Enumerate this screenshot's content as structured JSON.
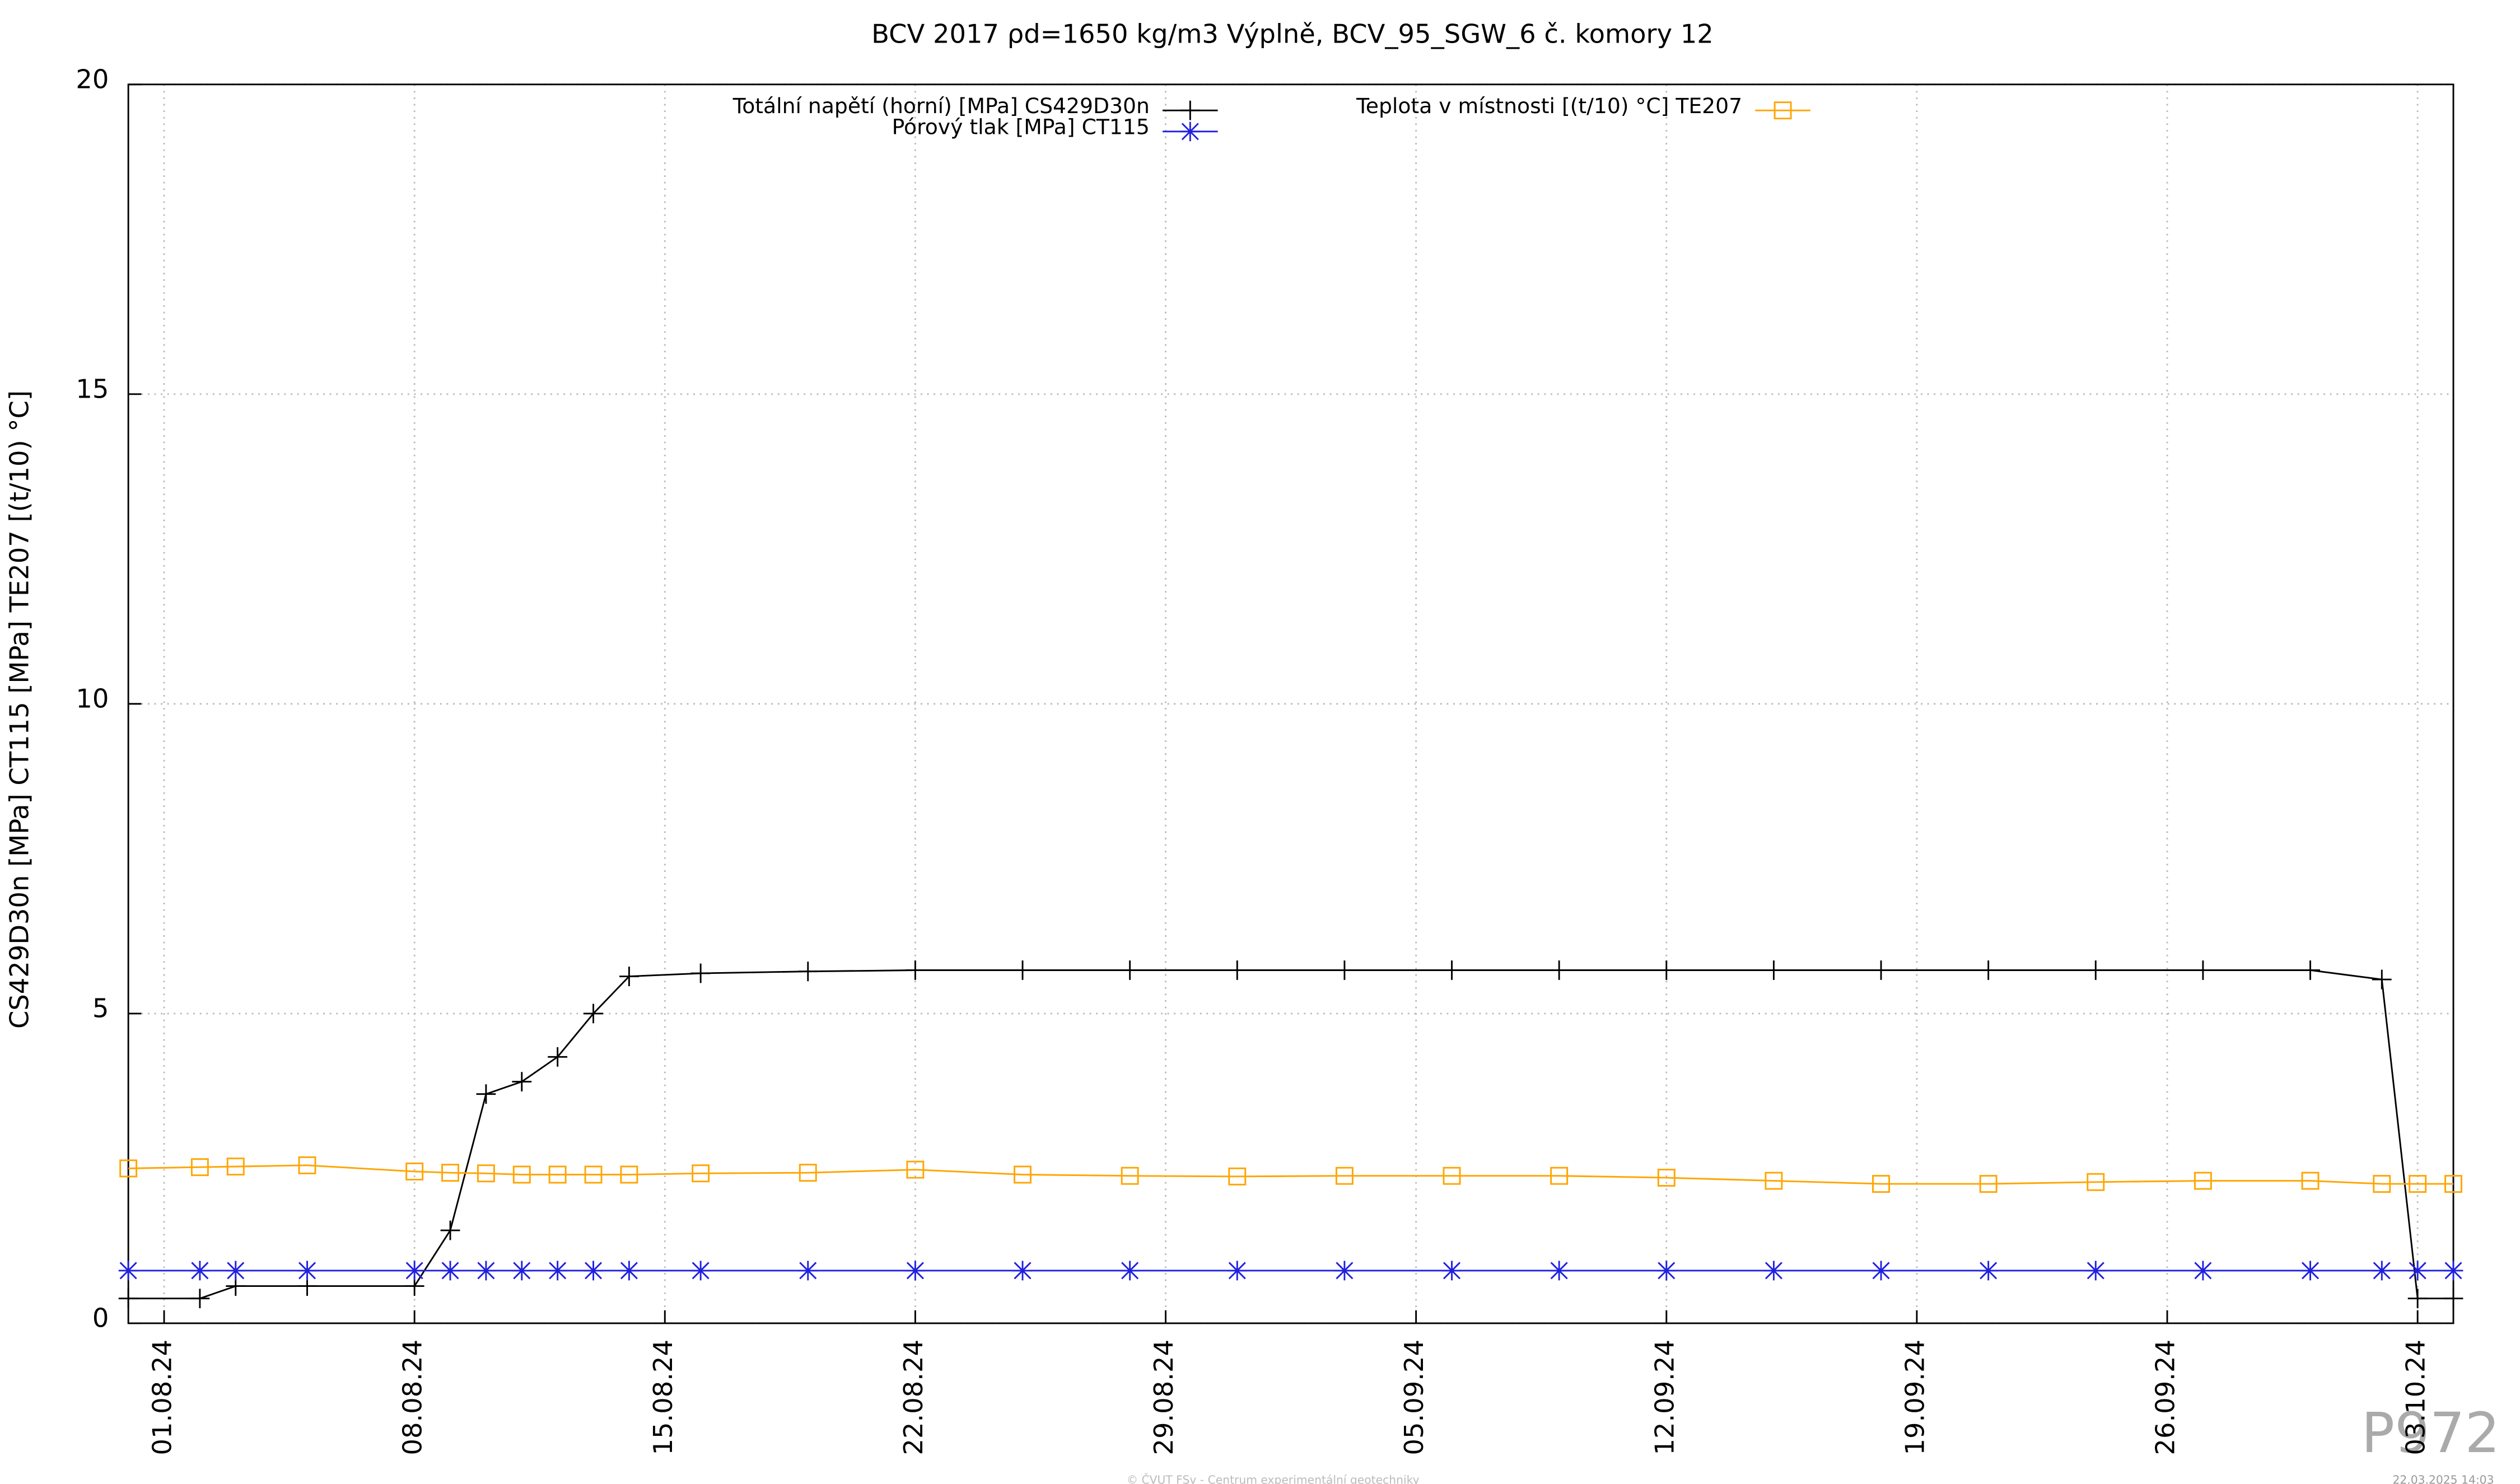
{
  "chart_data": {
    "type": "line",
    "title": "BCV 2017 ρd=1650 kg/m3 Výplně, BCV_95_SGW_6 č. komory 12",
    "y_label": "CS429D30n [MPa] CT115 [MPa] TE207 [(t/10) °C]",
    "x": [
      "31.07.24",
      "02.08.24",
      "03.08.24",
      "05.08.24",
      "08.08.24",
      "09.08.24",
      "10.08.24",
      "11.08.24",
      "12.08.24",
      "13.08.24",
      "14.08.24",
      "16.08.24",
      "19.08.24",
      "22.08.24",
      "25.08.24",
      "28.08.24",
      "31.08.24",
      "03.09.24",
      "06.09.24",
      "09.09.24",
      "12.09.24",
      "15.09.24",
      "18.09.24",
      "21.09.24",
      "24.09.24",
      "27.09.24",
      "30.09.24",
      "02.10.24",
      "03.10.24",
      "04.10.24"
    ],
    "series": [
      {
        "name": "Totální napětí (horní) [MPa] CS429D30n",
        "color": "#000000",
        "marker": "plus",
        "values": [
          0.4,
          0.4,
          0.6,
          0.6,
          0.6,
          1.5,
          3.7,
          3.9,
          4.3,
          5.0,
          5.6,
          5.65,
          5.68,
          5.7,
          5.7,
          5.7,
          5.7,
          5.7,
          5.7,
          5.7,
          5.7,
          5.7,
          5.7,
          5.7,
          5.7,
          5.7,
          5.7,
          5.55,
          0.4,
          0.4
        ]
      },
      {
        "name": "Pórový tlak [MPa] CT115",
        "color": "#2020e0",
        "marker": "star",
        "values": [
          0.85,
          0.85,
          0.85,
          0.85,
          0.85,
          0.85,
          0.85,
          0.85,
          0.85,
          0.85,
          0.85,
          0.85,
          0.85,
          0.85,
          0.85,
          0.85,
          0.85,
          0.85,
          0.85,
          0.85,
          0.85,
          0.85,
          0.85,
          0.85,
          0.85,
          0.85,
          0.85,
          0.85,
          0.85,
          0.85
        ]
      },
      {
        "name": "Teplota v místnosti [(t/10) °C] TE207",
        "color": "#ffa500",
        "marker": "square",
        "values": [
          2.5,
          2.52,
          2.53,
          2.55,
          2.45,
          2.43,
          2.42,
          2.4,
          2.4,
          2.4,
          2.4,
          2.42,
          2.43,
          2.48,
          2.4,
          2.38,
          2.37,
          2.38,
          2.38,
          2.38,
          2.35,
          2.3,
          2.25,
          2.25,
          2.28,
          2.3,
          2.3,
          2.25,
          2.25,
          2.25
        ]
      }
    ],
    "xlim": [
      "31.07.24",
      "04.10.24"
    ],
    "xticks": [
      "01.08.24",
      "08.08.24",
      "15.08.24",
      "22.08.24",
      "29.08.24",
      "05.09.24",
      "12.09.24",
      "19.09.24",
      "26.09.24",
      "03.10.24"
    ],
    "ylim": [
      0,
      20
    ],
    "yticks": [
      0,
      5,
      10,
      15,
      20
    ],
    "grid": true,
    "annotations": [
      "P972",
      "© ČVUT FSv - Centrum experimentální geotechniky",
      "22.03.2025 14:03"
    ]
  }
}
